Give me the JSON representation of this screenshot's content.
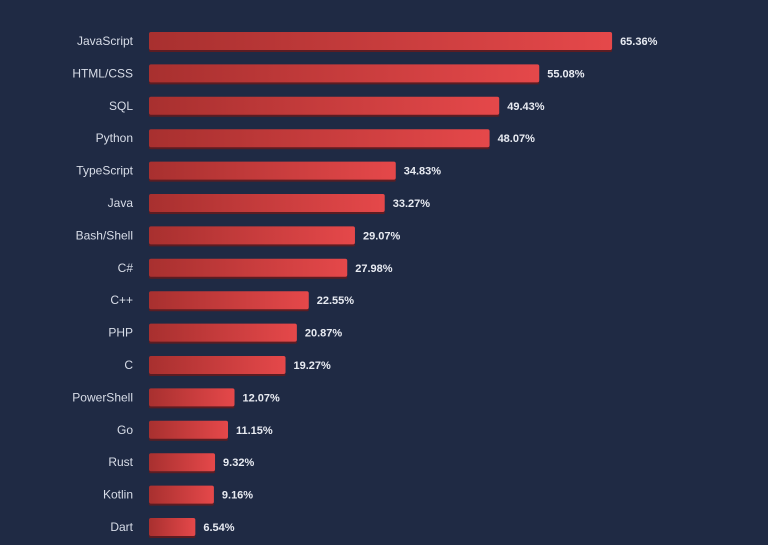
{
  "chart_data": {
    "type": "bar",
    "orientation": "horizontal",
    "categories": [
      "JavaScript",
      "HTML/CSS",
      "SQL",
      "Python",
      "TypeScript",
      "Java",
      "Bash/Shell",
      "C#",
      "C++",
      "PHP",
      "C",
      "PowerShell",
      "Go",
      "Rust",
      "Kotlin",
      "Dart"
    ],
    "values": [
      65.36,
      55.08,
      49.43,
      48.07,
      34.83,
      33.27,
      29.07,
      27.98,
      22.55,
      20.87,
      19.27,
      12.07,
      11.15,
      9.32,
      9.16,
      6.54
    ],
    "value_labels": [
      "65.36%",
      "55.08%",
      "49.43%",
      "48.07%",
      "34.83%",
      "33.27%",
      "29.07%",
      "27.98%",
      "22.55%",
      "20.87%",
      "19.27%",
      "12.07%",
      "11.15%",
      "9.32%",
      "9.16%",
      "6.54%"
    ],
    "title": "",
    "xlabel": "",
    "ylabel": "",
    "grid": false,
    "legend": "none",
    "colors": {
      "background": "#1f2a44",
      "bar_dark": "#a8302f",
      "bar_light": "#e5484a",
      "bar_shadow": "#5c1c22",
      "label_text": "#d8dde8",
      "value_text": "#e8ebf2"
    }
  }
}
